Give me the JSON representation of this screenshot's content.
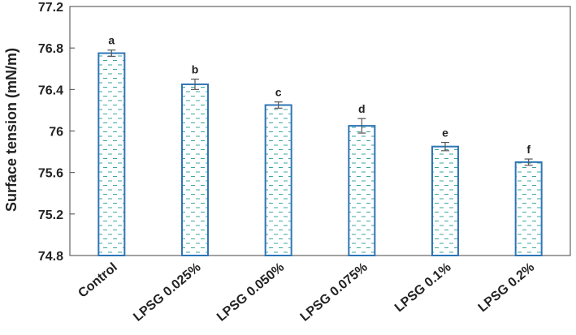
{
  "chart_data": {
    "type": "bar",
    "title": "",
    "xlabel": "",
    "ylabel": "Surface tension (mN/m)",
    "categories": [
      "Control",
      "LPSG 0.025%",
      "LPSG 0.050%",
      "LPSG 0.075%",
      "LPSG 0.1%",
      "LPSG 0.2%"
    ],
    "values": [
      76.75,
      76.45,
      76.25,
      76.05,
      75.85,
      75.7
    ],
    "errors": [
      0.03,
      0.05,
      0.03,
      0.07,
      0.04,
      0.03
    ],
    "significance_letters": [
      "a",
      "b",
      "c",
      "d",
      "e",
      "f"
    ],
    "ylim": [
      74.8,
      77.2
    ],
    "yticks": [
      "74.8",
      "75.2",
      "75.6",
      "76",
      "76.4",
      "76.8",
      "77.2"
    ],
    "grid": false,
    "legend": "none",
    "colors": {
      "bar_edge": "#2e75b6",
      "bar_pattern": "#3aa6a0",
      "error_bar": "#555555",
      "axis": "#444444"
    }
  }
}
